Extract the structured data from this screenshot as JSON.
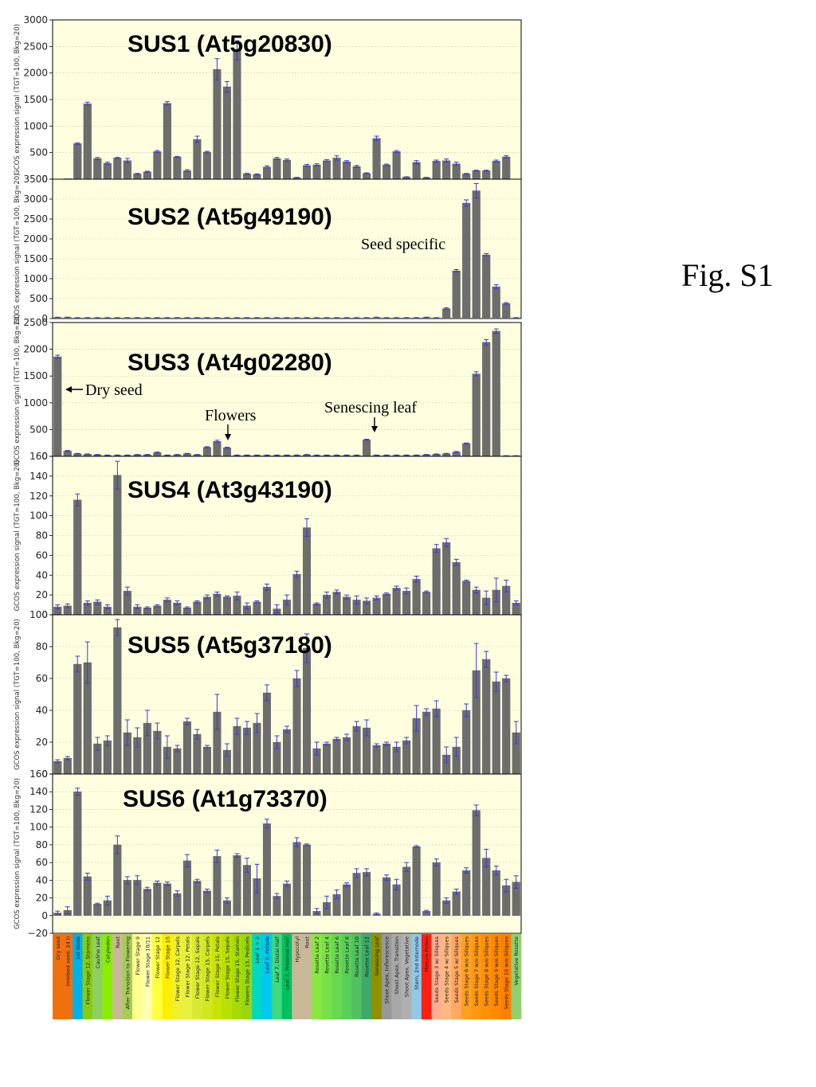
{
  "figure_label": "Fig. S1",
  "colors": {
    "plot_bg": "#ffffe0",
    "bar": "#6d6d6d",
    "error": "#3a3ad6",
    "grid": "#c8c8b0"
  },
  "categories": [
    "Dry seed",
    "Imbibed seed, 24 h",
    "1st Node",
    "Flower Stage 12, Stamens",
    "Cauline Leaf",
    "Cotyledon",
    "Root",
    "After Transition to Flowering",
    "Flower Stage 9",
    "Flower Stage 10/11",
    "Flower Stage 12",
    "Flower Stage 15",
    "Flower Stage 12, Carpels",
    "Flower Stage 12, Petals",
    "Flower Stage 12, Sepals",
    "Flower Stage 15, Carpels",
    "Flower Stage 15, Petals",
    "Flower Stage 15, Sepals",
    "Flower Stage 15, Stamen",
    "Flowers Stage 15, Pedicels",
    "Leaf 1 + 2",
    "Leaf 7, Petiole",
    "Leaf 7, Distal Half",
    "Leaf 7, Proximal Half",
    "Hypocotyl",
    "Root",
    "Rosette Leaf 2",
    "Rosette Leaf 4",
    "Rosette Leaf 6",
    "Rosette Leaf 8",
    "Rosette Leaf 10",
    "Rosette Leaf 12",
    "Senescing Leaf",
    "Shoot Apex, Inflorescence",
    "Shoot Apex, Transition",
    "Shoot Apex, Vegetative",
    "Stem, 2nd Internode",
    "Mature Pollen",
    "Seeds Stage 3 w/ Siliques",
    "Seeds Stage 4 w/ Siliques",
    "Seeds Stage 5 w/ Siliques",
    "Seeds Stage 6 w/o Siliques",
    "Seeds Stage 7 w/o Siliques",
    "Seeds Stage 8 w/o Siliques",
    "Seeds Stage 9 w/o Siliques",
    "Seeds Stage 10 w/o Siliques",
    "Vegetative Rosette"
  ],
  "category_colors": [
    "#f07010",
    "#f07010",
    "#00b0e8",
    "#88cc10",
    "#8ed060",
    "#88ee00",
    "#c8b898",
    "#a8cc58",
    "#ffff90",
    "#ffffb0",
    "#ffff40",
    "#ffee00",
    "#eef030",
    "#e8f040",
    "#d8ea30",
    "#d0e820",
    "#c8e400",
    "#b8e000",
    "#a8dc00",
    "#98d810",
    "#00d8c0",
    "#00c8f0",
    "#40d880",
    "#00c060",
    "#c8b898",
    "#c8b898",
    "#88e840",
    "#78e048",
    "#68d850",
    "#58d058",
    "#50c060",
    "#40a868",
    "#909000",
    "#989898",
    "#a8a8a8",
    "#b0b0b0",
    "#90c8e8",
    "#ff2010",
    "#ffb090",
    "#ffb880",
    "#ffa860",
    "#ffa020",
    "#ff9810",
    "#ff9008",
    "#ff8800",
    "#ff8000",
    "#90d070"
  ],
  "y_axis_label": "GCOS expression signal (TGT=100, Bkg=20)",
  "annotations": {
    "seed_specific": "Seed specific",
    "dry_seed": "Dry seed",
    "flowers": "Flowers",
    "senescing_leaf": "Senescing leaf"
  },
  "chart_data": [
    {
      "type": "bar",
      "title": "SUS1 (At5g20830)",
      "ylim": [
        0,
        3000
      ],
      "yticks": [
        0,
        500,
        1000,
        1500,
        2000,
        2500,
        3000
      ],
      "values": [
        10,
        670,
        1420,
        390,
        300,
        400,
        350,
        100,
        140,
        520,
        1430,
        420,
        160,
        750,
        510,
        2070,
        1740,
        2430,
        100,
        90,
        230,
        390,
        360,
        30,
        260,
        270,
        350,
        400,
        330,
        240,
        110,
        770,
        270,
        520,
        40,
        320,
        30,
        340,
        350,
        290,
        100,
        160,
        160,
        340,
        420
      ],
      "errors": [
        0,
        15,
        30,
        20,
        20,
        10,
        40,
        10,
        10,
        20,
        30,
        10,
        20,
        60,
        15,
        200,
        100,
        180,
        10,
        10,
        20,
        20,
        20,
        5,
        20,
        20,
        20,
        40,
        20,
        20,
        10,
        40,
        15,
        20,
        5,
        30,
        5,
        20,
        30,
        30,
        10,
        10,
        10,
        20,
        20
      ],
      "first_index": 1
    },
    {
      "type": "bar",
      "title": "SUS2 (At5g49190)",
      "ylim": [
        0,
        3500
      ],
      "yticks": [
        0,
        500,
        1000,
        1500,
        2000,
        2500,
        3000,
        3500
      ],
      "values": [
        30,
        30,
        20,
        20,
        20,
        20,
        20,
        20,
        20,
        20,
        20,
        20,
        20,
        20,
        20,
        20,
        20,
        20,
        20,
        20,
        20,
        20,
        20,
        20,
        20,
        20,
        20,
        20,
        20,
        20,
        20,
        20,
        30,
        20,
        20,
        20,
        20,
        30,
        20,
        250,
        1200,
        2900,
        3210,
        1600,
        800,
        380,
        20
      ],
      "errors": [
        5,
        5,
        5,
        5,
        5,
        5,
        5,
        5,
        5,
        5,
        5,
        5,
        5,
        5,
        5,
        5,
        5,
        5,
        5,
        5,
        5,
        5,
        5,
        5,
        5,
        5,
        5,
        5,
        5,
        5,
        5,
        5,
        5,
        5,
        5,
        5,
        5,
        5,
        5,
        20,
        30,
        80,
        180,
        30,
        50,
        20,
        5
      ]
    },
    {
      "type": "bar",
      "title": "SUS3 (At4g02280)",
      "ylim": [
        0,
        2500
      ],
      "yticks": [
        0,
        500,
        1000,
        1500,
        2000,
        2500
      ],
      "values": [
        1860,
        100,
        50,
        40,
        30,
        20,
        20,
        20,
        30,
        30,
        70,
        20,
        30,
        50,
        30,
        170,
        280,
        160,
        20,
        20,
        20,
        20,
        20,
        20,
        20,
        30,
        20,
        20,
        20,
        20,
        20,
        310,
        20,
        20,
        20,
        20,
        20,
        30,
        40,
        50,
        80,
        240,
        1540,
        2130,
        2340,
        10,
        10
      ],
      "errors": [
        30,
        10,
        5,
        5,
        5,
        5,
        5,
        5,
        5,
        5,
        10,
        5,
        5,
        5,
        5,
        10,
        20,
        10,
        5,
        5,
        5,
        5,
        5,
        5,
        5,
        5,
        5,
        5,
        5,
        5,
        5,
        10,
        5,
        5,
        5,
        5,
        5,
        5,
        5,
        5,
        10,
        10,
        40,
        50,
        40,
        2,
        2
      ]
    },
    {
      "type": "bar",
      "title": "SUS4 (At3g43190)",
      "ylim": [
        0,
        160
      ],
      "yticks": [
        0,
        20,
        40,
        60,
        80,
        100,
        120,
        140,
        160
      ],
      "values": [
        8,
        9,
        116,
        12,
        13,
        8,
        141,
        24,
        8,
        7,
        9,
        15,
        12,
        7,
        13,
        18,
        21,
        18,
        19,
        9,
        13,
        28,
        6,
        15,
        41,
        88,
        11,
        20,
        23,
        18,
        15,
        14,
        17,
        21,
        27,
        24,
        36,
        23,
        67,
        73,
        53,
        34,
        25,
        17,
        25,
        29,
        12
      ],
      "errors": [
        2,
        2,
        6,
        2,
        2,
        2,
        14,
        4,
        2,
        1,
        1,
        2,
        2,
        1,
        1,
        2,
        2,
        1,
        4,
        3,
        1,
        3,
        4,
        5,
        3,
        9,
        1,
        3,
        2,
        2,
        4,
        3,
        2,
        1,
        2,
        3,
        3,
        1,
        4,
        4,
        3,
        1,
        3,
        7,
        12,
        6,
        2
      ]
    },
    {
      "type": "bar",
      "title": "SUS5 (At5g37180)",
      "ylim": [
        0,
        100
      ],
      "yticks": [
        0,
        20,
        40,
        60,
        80,
        100
      ],
      "values": [
        8,
        10,
        69,
        70,
        19,
        21,
        92,
        26,
        23,
        32,
        27,
        17,
        16,
        33,
        25,
        17,
        39,
        15,
        30,
        29,
        32,
        51,
        20,
        28,
        60,
        79,
        16,
        19,
        22,
        23,
        30,
        29,
        18,
        19,
        17,
        21,
        35,
        39,
        41,
        12,
        17,
        40,
        65,
        72,
        58,
        60,
        26
      ],
      "errors": [
        1,
        1,
        5,
        13,
        4,
        3,
        5,
        8,
        6,
        8,
        5,
        7,
        2,
        2,
        3,
        1,
        11,
        4,
        5,
        4,
        6,
        5,
        4,
        2,
        5,
        9,
        4,
        1,
        1,
        2,
        3,
        5,
        1,
        1,
        3,
        2,
        8,
        2,
        5,
        5,
        6,
        4,
        17,
        5,
        6,
        2,
        7
      ]
    },
    {
      "type": "bar",
      "title": "SUS6 (At1g73370)",
      "ylim": [
        -20,
        160
      ],
      "yticks": [
        -20,
        0,
        20,
        40,
        60,
        80,
        100,
        120,
        140,
        160
      ],
      "values": [
        3,
        6,
        140,
        44,
        13,
        17,
        80,
        40,
        40,
        30,
        37,
        36,
        25,
        62,
        39,
        28,
        67,
        17,
        68,
        57,
        42,
        104,
        22,
        36,
        83,
        80,
        5,
        15,
        24,
        35,
        48,
        49,
        2,
        43,
        35,
        55,
        78,
        5,
        60,
        17,
        27,
        51,
        119,
        65,
        51,
        34,
        38
      ],
      "errors": [
        2,
        4,
        4,
        4,
        1,
        5,
        10,
        4,
        5,
        2,
        2,
        2,
        3,
        7,
        2,
        2,
        7,
        3,
        2,
        8,
        16,
        5,
        3,
        3,
        5,
        1,
        3,
        7,
        5,
        2,
        5,
        4,
        1,
        3,
        6,
        5,
        1,
        1,
        4,
        3,
        3,
        3,
        6,
        10,
        5,
        7,
        7
      ]
    }
  ]
}
